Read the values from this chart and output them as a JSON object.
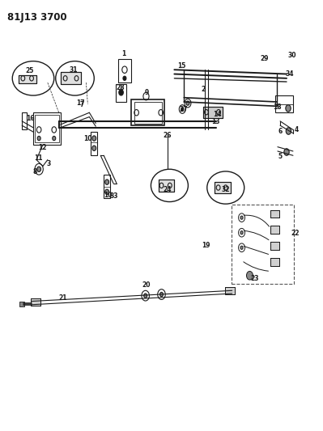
{
  "title": "81J13 3700",
  "background_color": "#ffffff",
  "line_color": "#1a1a1a",
  "figsize": [
    3.99,
    5.33
  ],
  "dpi": 100
}
